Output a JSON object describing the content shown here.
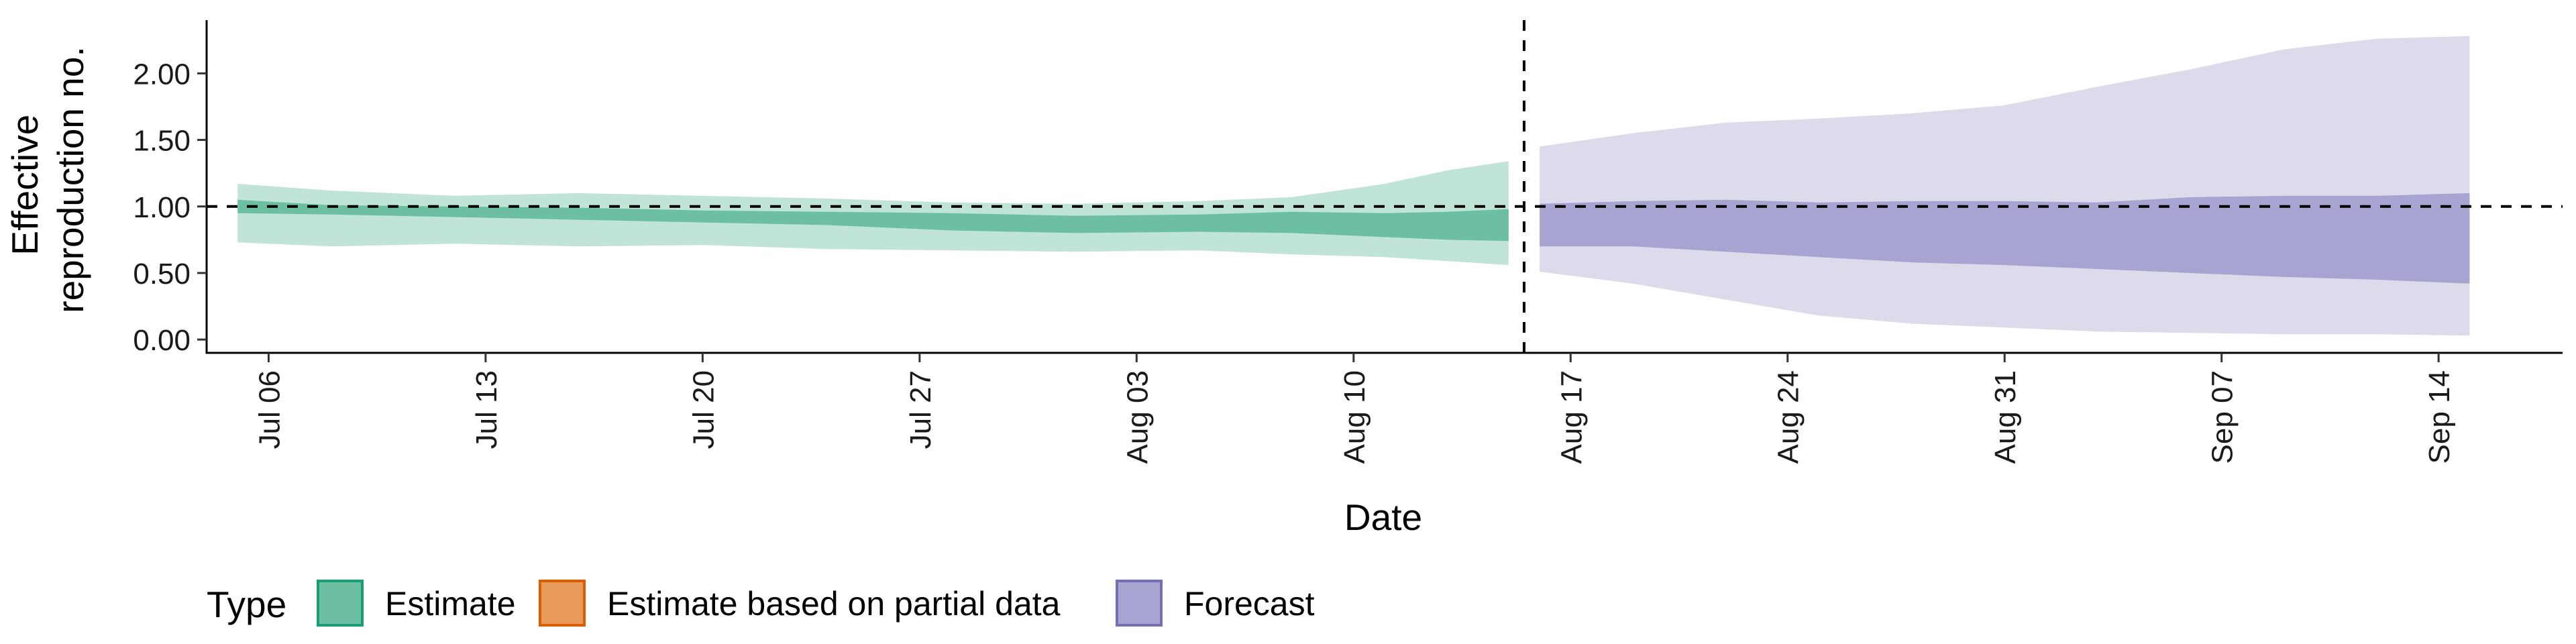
{
  "chart_data": {
    "type": "area",
    "xlabel": "Date",
    "ylabel_lines": [
      "Effective",
      "reproduction no."
    ],
    "ylim": [
      -0.1,
      2.4
    ],
    "yticks": [
      0.0,
      0.5,
      1.0,
      1.5,
      2.0
    ],
    "ytick_labels": [
      "0.00",
      "0.50",
      "1.00",
      "1.50",
      "2.00"
    ],
    "xlim": [
      "2020-07-04",
      "2020-09-18"
    ],
    "xticks": [
      "2020-07-06",
      "2020-07-13",
      "2020-07-20",
      "2020-07-27",
      "2020-08-03",
      "2020-08-10",
      "2020-08-17",
      "2020-08-24",
      "2020-08-31",
      "2020-09-07",
      "2020-09-14"
    ],
    "xtick_labels": [
      "Jul 06",
      "Jul 13",
      "Jul 20",
      "Jul 27",
      "Aug 03",
      "Aug 10",
      "Aug 17",
      "Aug 24",
      "Aug 31",
      "Sep 07",
      "Sep 14"
    ],
    "reference_line": {
      "y": 1.0,
      "style": "dashed"
    },
    "forecast_start_line": {
      "x": "2020-08-16",
      "style": "dashed"
    },
    "grid": false,
    "legend": {
      "title": "Type",
      "position": "bottom-left",
      "items": [
        {
          "label": "Estimate",
          "fill": "#6cc0a1",
          "stroke": "#1b9e77"
        },
        {
          "label": "Estimate based on partial data",
          "fill": "#e89a5a",
          "stroke": "#d95f02"
        },
        {
          "label": "Forecast",
          "fill": "#a8a4d2",
          "stroke": "#7570b3"
        }
      ]
    },
    "series": [
      {
        "name": "Estimate",
        "outer_color": "#c0e5d7",
        "inner_color": "#6cc0a1",
        "x": [
          "2020-07-05",
          "2020-07-08",
          "2020-07-12",
          "2020-07-16",
          "2020-07-20",
          "2020-07-24",
          "2020-07-28",
          "2020-08-01",
          "2020-08-05",
          "2020-08-08",
          "2020-08-11",
          "2020-08-13",
          "2020-08-15"
        ],
        "outer_upper": [
          1.17,
          1.12,
          1.08,
          1.1,
          1.08,
          1.06,
          1.03,
          1.02,
          1.04,
          1.07,
          1.17,
          1.27,
          1.34
        ],
        "inner_upper": [
          1.05,
          1.01,
          1.0,
          0.99,
          0.97,
          0.96,
          0.95,
          0.93,
          0.94,
          0.96,
          0.95,
          0.96,
          0.98
        ],
        "inner_lower": [
          0.95,
          0.94,
          0.92,
          0.9,
          0.88,
          0.86,
          0.82,
          0.8,
          0.81,
          0.8,
          0.77,
          0.75,
          0.74
        ],
        "outer_lower": [
          0.73,
          0.7,
          0.72,
          0.7,
          0.71,
          0.68,
          0.67,
          0.66,
          0.67,
          0.64,
          0.62,
          0.59,
          0.56
        ]
      },
      {
        "name": "Forecast",
        "outer_color": "#dcdaeb",
        "inner_color": "#a8a4d2",
        "x": [
          "2020-08-16",
          "2020-08-19",
          "2020-08-22",
          "2020-08-25",
          "2020-08-28",
          "2020-08-31",
          "2020-09-03",
          "2020-09-06",
          "2020-09-09",
          "2020-09-12",
          "2020-09-15"
        ],
        "outer_upper": [
          1.45,
          1.55,
          1.63,
          1.66,
          1.7,
          1.76,
          1.9,
          2.03,
          2.18,
          2.26,
          2.28
        ],
        "inner_upper": [
          1.02,
          1.04,
          1.05,
          1.03,
          1.04,
          1.04,
          1.03,
          1.07,
          1.08,
          1.08,
          1.1
        ],
        "inner_lower": [
          0.7,
          0.7,
          0.66,
          0.62,
          0.58,
          0.56,
          0.53,
          0.5,
          0.47,
          0.45,
          0.42
        ],
        "outer_lower": [
          0.51,
          0.42,
          0.3,
          0.18,
          0.12,
          0.09,
          0.06,
          0.05,
          0.04,
          0.04,
          0.03
        ]
      }
    ]
  }
}
